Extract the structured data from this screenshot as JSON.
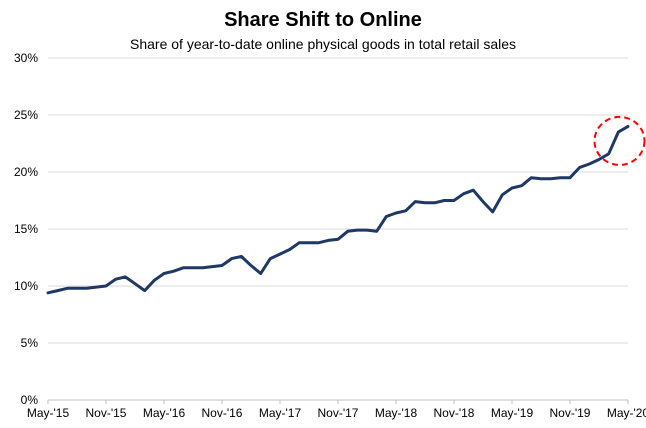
{
  "chart_data": {
    "type": "line",
    "title": "Share Shift to Online",
    "subtitle": "Share of year-to-date online physical goods in total retail sales",
    "xlabel": "",
    "ylabel": "",
    "ylim": [
      0,
      30
    ],
    "y_ticks": [
      "0%",
      "5%",
      "10%",
      "15%",
      "20%",
      "25%",
      "30%"
    ],
    "y_tick_values": [
      0,
      5,
      10,
      15,
      20,
      25,
      30
    ],
    "x_tick_labels": [
      "May-'15",
      "Nov-'15",
      "May-'16",
      "Nov-'16",
      "May-'17",
      "Nov-'17",
      "May-'18",
      "Nov-'18",
      "May-'19",
      "Nov-'19",
      "May-'20"
    ],
    "x_tick_index": [
      0,
      6,
      12,
      18,
      24,
      30,
      36,
      42,
      48,
      54,
      60
    ],
    "grid": true,
    "legend": "none",
    "line_color": "#1f3864",
    "annotation": {
      "type": "dashed-circle",
      "color": "#ff0000",
      "around_index_range": [
        57,
        60
      ]
    },
    "series": [
      {
        "values": [
          9.4,
          9.6,
          9.8,
          9.8,
          9.8,
          9.9,
          10.0,
          10.6,
          10.8,
          10.2,
          9.6,
          10.5,
          11.1,
          11.3,
          11.6,
          11.6,
          11.6,
          11.7,
          11.8,
          12.4,
          12.6,
          11.8,
          11.1,
          12.4,
          12.8,
          13.2,
          13.8,
          13.8,
          13.8,
          14.0,
          14.1,
          14.8,
          14.9,
          14.9,
          14.8,
          16.1,
          16.4,
          16.6,
          17.4,
          17.3,
          17.3,
          17.5,
          17.5,
          18.1,
          18.4,
          17.4,
          16.5,
          18.0,
          18.6,
          18.8,
          19.5,
          19.4,
          19.4,
          19.5,
          19.5,
          20.4,
          20.7,
          21.1,
          21.6,
          23.5,
          24.0
        ]
      }
    ]
  }
}
